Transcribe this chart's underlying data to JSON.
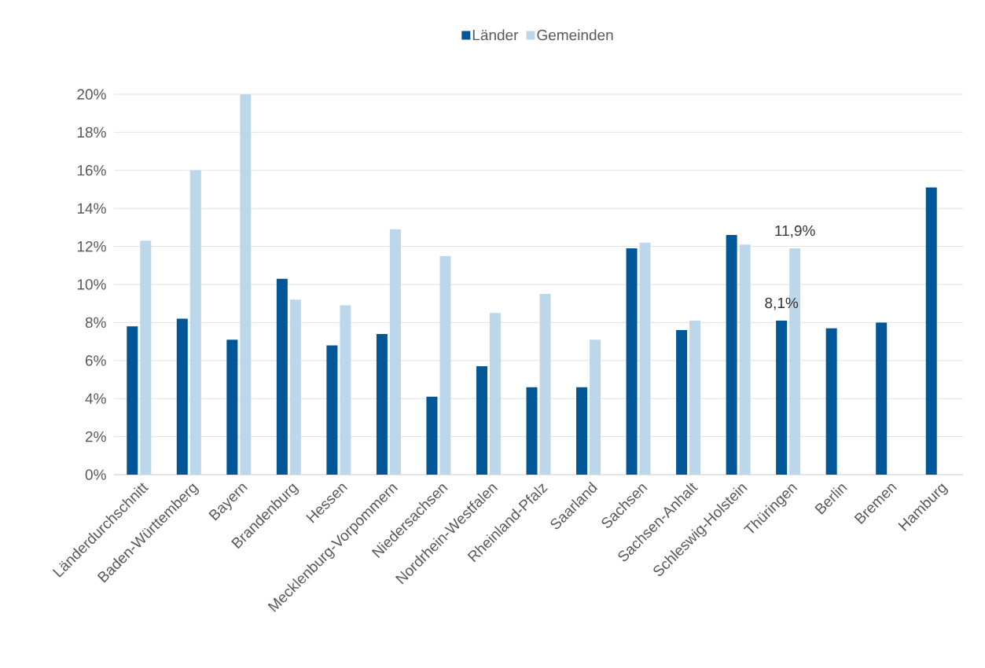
{
  "chart_data": {
    "type": "bar",
    "categories": [
      "Länderdurchschnitt",
      "Baden-Württemberg",
      "Bayern",
      "Brandenburg",
      "Hessen",
      "Mecklenburg-Vorpommern",
      "Niedersachsen",
      "Nordrhein-Westfalen",
      "Rheinland-Pfalz",
      "Saarland",
      "Sachsen",
      "Sachsen-Anhalt",
      "Schleswig-Holstein",
      "Thüringen",
      "Berlin",
      "Bremen",
      "Hamburg"
    ],
    "series": [
      {
        "name": "Länder",
        "color": "#005797",
        "values": [
          7.8,
          8.2,
          7.1,
          10.3,
          6.8,
          7.4,
          4.1,
          5.7,
          4.6,
          4.6,
          11.9,
          7.6,
          12.6,
          8.1,
          7.7,
          8.0,
          15.1
        ],
        "value_labels": [
          null,
          null,
          null,
          null,
          null,
          null,
          null,
          null,
          null,
          null,
          null,
          null,
          null,
          "8,1%",
          null,
          null,
          null
        ]
      },
      {
        "name": "Gemeinden",
        "color": "#bdd7ea",
        "values": [
          12.3,
          16.0,
          20.0,
          9.2,
          8.9,
          12.9,
          11.5,
          8.5,
          9.5,
          7.1,
          12.2,
          8.1,
          12.1,
          11.9,
          null,
          null,
          null
        ],
        "value_labels": [
          null,
          null,
          null,
          null,
          null,
          null,
          null,
          null,
          null,
          null,
          null,
          null,
          null,
          "11,9%",
          null,
          null,
          null
        ]
      }
    ],
    "ylim": [
      0,
      20
    ],
    "yticks": [
      {
        "value": 0,
        "label": "0%"
      },
      {
        "value": 2,
        "label": "2%"
      },
      {
        "value": 4,
        "label": "4%"
      },
      {
        "value": 6,
        "label": "6%"
      },
      {
        "value": 8,
        "label": "8%"
      },
      {
        "value": 10,
        "label": "10%"
      },
      {
        "value": 12,
        "label": "12%"
      },
      {
        "value": 14,
        "label": "14%"
      },
      {
        "value": 16,
        "label": "16%"
      },
      {
        "value": 18,
        "label": "18%"
      },
      {
        "value": 20,
        "label": "20%"
      }
    ],
    "grid": "y",
    "legend": "top"
  }
}
